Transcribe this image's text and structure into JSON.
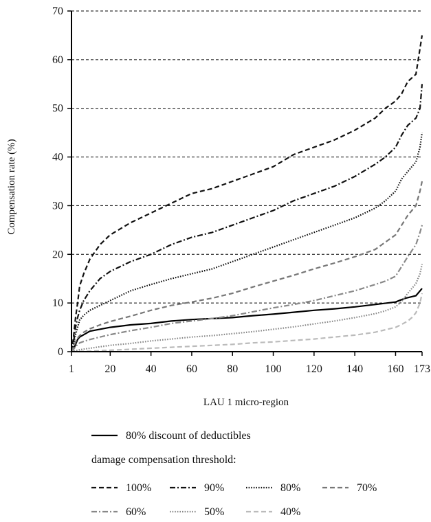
{
  "chart_data": {
    "type": "line",
    "title": "",
    "xlabel": "LAU 1 micro-region",
    "ylabel": "Compensation rate (%)",
    "xlim": [
      1,
      173
    ],
    "ylim": [
      0,
      70
    ],
    "x_ticks": [
      1,
      20,
      40,
      60,
      80,
      100,
      120,
      140,
      160,
      173
    ],
    "y_ticks": [
      0,
      10,
      20,
      30,
      40,
      50,
      60,
      70
    ],
    "grid": "horizontal dashed",
    "legend_placement": "bottom",
    "legend_subheading": "damage compensation threshold:",
    "series": [
      {
        "name": "80% discount of deductibles",
        "line_style": "solid",
        "color": "#000000",
        "x": [
          1,
          2,
          3,
          4,
          5,
          10,
          20,
          30,
          40,
          50,
          60,
          70,
          80,
          90,
          100,
          110,
          120,
          130,
          140,
          150,
          160,
          163,
          165,
          168,
          170,
          173
        ],
        "y": [
          0,
          0.5,
          1.5,
          2.5,
          3.0,
          4.2,
          5.0,
          5.5,
          5.8,
          6.3,
          6.6,
          6.8,
          7.0,
          7.4,
          7.7,
          8.1,
          8.5,
          8.8,
          9.2,
          9.7,
          10.2,
          10.7,
          11.0,
          11.3,
          11.5,
          13.0
        ]
      },
      {
        "name": "100%",
        "line_style": "dashed",
        "color": "#111111",
        "x": [
          1,
          2,
          3,
          4,
          5,
          7,
          10,
          15,
          20,
          30,
          40,
          50,
          60,
          70,
          80,
          90,
          100,
          110,
          120,
          130,
          140,
          150,
          155,
          160,
          163,
          166,
          170,
          173
        ],
        "y": [
          0,
          3,
          7,
          10,
          13.5,
          16,
          19,
          22,
          24,
          26.5,
          28.5,
          30.5,
          32.5,
          33.5,
          35,
          36.5,
          38,
          40.5,
          42,
          43.5,
          45.5,
          48,
          50,
          51.5,
          53,
          55.5,
          57,
          65
        ]
      },
      {
        "name": "90%",
        "line_style": "dash-dot",
        "color": "#111111",
        "x": [
          1,
          2,
          3,
          4,
          5,
          7,
          10,
          15,
          20,
          30,
          40,
          50,
          60,
          70,
          80,
          90,
          100,
          110,
          120,
          130,
          140,
          150,
          155,
          160,
          163,
          166,
          170,
          172,
          173
        ],
        "y": [
          0,
          2,
          5,
          7,
          8.5,
          10.5,
          12.5,
          15,
          16.5,
          18.5,
          20,
          22,
          23.5,
          24.5,
          26,
          27.5,
          29,
          31,
          32.5,
          34,
          36,
          38.5,
          40,
          42,
          44.5,
          46.5,
          48,
          50,
          55
        ]
      },
      {
        "name": "80%",
        "line_style": "dotted",
        "color": "#111111",
        "x": [
          1,
          2,
          3,
          4,
          5,
          7,
          10,
          15,
          20,
          30,
          40,
          50,
          60,
          70,
          80,
          90,
          100,
          110,
          120,
          130,
          140,
          150,
          155,
          160,
          163,
          166,
          170,
          172,
          173
        ],
        "y": [
          0,
          1.5,
          3.5,
          5,
          6.5,
          7.5,
          8.5,
          9.5,
          10.5,
          12.5,
          13.8,
          15,
          16,
          17,
          18.5,
          20,
          21.5,
          23,
          24.5,
          26,
          27.5,
          29.5,
          31,
          33,
          35.5,
          37,
          39,
          42,
          45
        ]
      },
      {
        "name": "70%",
        "line_style": "dashed",
        "color": "#777777",
        "x": [
          1,
          2,
          3,
          4,
          5,
          7,
          10,
          15,
          20,
          30,
          40,
          50,
          60,
          70,
          80,
          90,
          100,
          110,
          120,
          130,
          140,
          150,
          155,
          160,
          163,
          166,
          170,
          172,
          173
        ],
        "y": [
          0,
          1,
          2,
          2.8,
          3.3,
          4,
          4.7,
          5.5,
          6.2,
          7.3,
          8.5,
          9.5,
          10.2,
          11,
          12,
          13.3,
          14.5,
          15.7,
          17,
          18.2,
          19.5,
          21,
          22.5,
          24,
          26,
          28,
          30,
          33,
          35
        ]
      },
      {
        "name": "60%",
        "line_style": "dash-dot",
        "color": "#888888",
        "x": [
          1,
          2,
          3,
          4,
          5,
          7,
          10,
          15,
          20,
          30,
          40,
          50,
          60,
          70,
          80,
          90,
          100,
          110,
          120,
          130,
          140,
          150,
          155,
          160,
          163,
          166,
          170,
          172,
          173
        ],
        "y": [
          0,
          0.5,
          1,
          1.5,
          1.8,
          2.1,
          2.5,
          3,
          3.5,
          4.3,
          5,
          5.8,
          6.3,
          6.8,
          7.4,
          8.2,
          9,
          9.7,
          10.5,
          11.5,
          12.5,
          13.8,
          14.5,
          15.5,
          17.5,
          19.5,
          22,
          24.5,
          26
        ]
      },
      {
        "name": "50%",
        "line_style": "dotted",
        "color": "#888888",
        "x": [
          1,
          3,
          5,
          10,
          15,
          20,
          30,
          40,
          50,
          60,
          70,
          80,
          90,
          100,
          110,
          120,
          130,
          140,
          150,
          155,
          160,
          163,
          166,
          170,
          172,
          173
        ],
        "y": [
          0,
          0.2,
          0.4,
          0.7,
          1,
          1.3,
          1.7,
          2.2,
          2.6,
          3,
          3.3,
          3.7,
          4.1,
          4.6,
          5.1,
          5.7,
          6.3,
          7,
          7.8,
          8.4,
          9.2,
          10.3,
          12,
          14,
          16,
          18
        ]
      },
      {
        "name": "40%",
        "line_style": "dashed",
        "color": "#bbbbbb",
        "x": [
          1,
          10,
          20,
          30,
          40,
          50,
          60,
          70,
          80,
          90,
          100,
          110,
          120,
          130,
          140,
          150,
          155,
          160,
          163,
          166,
          168,
          170,
          172,
          173
        ],
        "y": [
          0,
          0.1,
          0.3,
          0.5,
          0.7,
          0.9,
          1.1,
          1.3,
          1.5,
          1.8,
          2.0,
          2.3,
          2.6,
          3.0,
          3.4,
          4.0,
          4.5,
          5.0,
          5.6,
          6.3,
          7.0,
          8.0,
          10.0,
          12.0
        ]
      }
    ]
  }
}
